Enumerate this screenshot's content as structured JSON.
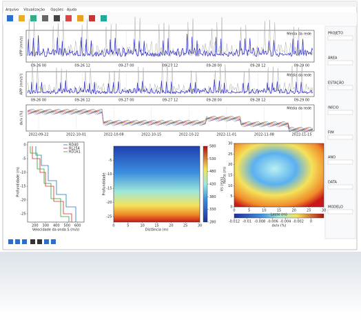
{
  "window": {
    "menu": [
      "Arquivo",
      "Visualização",
      "Opções",
      "Ajuda"
    ]
  },
  "panels": {
    "vpp": {
      "ylabel": "VPP (mm/s)",
      "xticks": [
        "09-26 00",
        "09-26 12",
        "09-27 00",
        "09-27 12",
        "09-28 00",
        "09-28 12",
        "09-29 00"
      ],
      "legend": "Média da rede"
    },
    "app": {
      "ylabel": "APP (mm/s²)",
      "xticks": [
        "09-26 00",
        "09-26 12",
        "09-27 00",
        "09-27 12",
        "09-28 00",
        "09-28 12",
        "09-29 00"
      ],
      "legend": "Média da rede"
    },
    "dvv": {
      "ylabel": "dv/v (%)",
      "xticks": [
        "2022-09-22",
        "2022-10-01",
        "2022-10-08",
        "2022-10-15",
        "2022-10-22",
        "2022-11-01",
        "2022-11-08",
        "2022-11-15"
      ],
      "legend": "Média da rede"
    },
    "profile": {
      "ylabel": "Profundidade (m)",
      "xlabel": "Velocidade da onda S (m/s)",
      "xlim": [
        130,
        660
      ],
      "xticks": [
        200,
        300,
        400,
        500,
        600
      ],
      "ylim": [
        -28,
        1
      ],
      "yticks": [
        0,
        -5,
        -10,
        -15,
        -20,
        -25
      ],
      "legend": [
        "RD40",
        "RL254",
        "RD161"
      ]
    },
    "section": {
      "ylabel": "Profundidade",
      "xlabel": "Distância (m)",
      "xlim": [
        0,
        30
      ],
      "xticks": [
        0,
        5,
        10,
        15,
        20,
        25,
        30
      ],
      "ylim": [
        -27,
        0
      ],
      "yticks": [
        -25,
        -20,
        -15,
        -10,
        -5
      ],
      "cbar_label": "Vs (m/s)",
      "cbar_lim": [
        280,
        580
      ],
      "cbar_ticks": [
        280,
        330,
        380,
        430,
        480,
        530,
        580
      ]
    },
    "map": {
      "ylabel": "Norte (m)",
      "xlabel": "Leste (m)",
      "xlim": [
        0,
        30
      ],
      "xticks": [
        0,
        5,
        10,
        15,
        20,
        25,
        30
      ],
      "ylim": [
        0,
        30
      ],
      "yticks": [
        0,
        5,
        10,
        15,
        20,
        25,
        30
      ],
      "cbar_label": "dv/v (%)",
      "cbar_lim": [
        -0.012,
        0.002
      ],
      "cbar_ticks": [
        -0.012,
        -0.01,
        -0.008,
        -0.006,
        -0.004,
        -0.002,
        0
      ]
    }
  },
  "sidebar": [
    "PROJETO",
    "ÁREA",
    "ESTAÇÃO",
    "INÍCIO",
    "FIM",
    "ANO",
    "DATA",
    "MODELO"
  ]
}
